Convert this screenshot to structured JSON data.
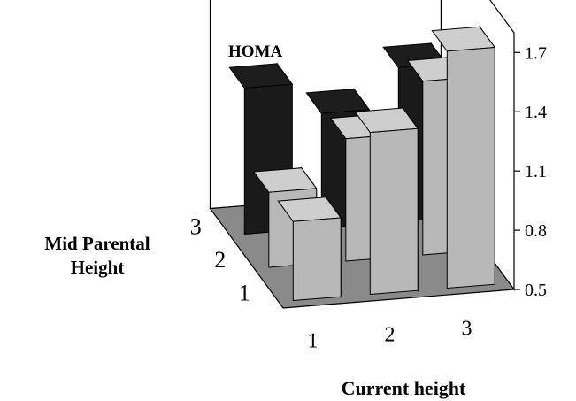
{
  "chart_data": {
    "type": "bar",
    "title": "HOMA",
    "xlabel": "Current height",
    "ylabel": "Mid Parental Height",
    "x_categories": [
      "1",
      "2",
      "3"
    ],
    "depth_categories": [
      "1",
      "2",
      "3"
    ],
    "z_ticks": [
      "0.5",
      "0.8",
      "1.1",
      "1.4",
      "1.7"
    ],
    "zlim": [
      0.5,
      1.8
    ],
    "values": [
      {
        "current": "1",
        "mid_parental": "1",
        "value": 0.9
      },
      {
        "current": "1",
        "mid_parental": "2",
        "value": 0.88
      },
      {
        "current": "1",
        "mid_parental": "3",
        "value": 1.24
      },
      {
        "current": "2",
        "mid_parental": "1",
        "value": 1.32
      },
      {
        "current": "2",
        "mid_parental": "2",
        "value": 1.12
      },
      {
        "current": "2",
        "mid_parental": "3",
        "value": 1.08
      },
      {
        "current": "3",
        "mid_parental": "1",
        "value": 1.7
      },
      {
        "current": "3",
        "mid_parental": "2",
        "value": 1.38
      },
      {
        "current": "3",
        "mid_parental": "3",
        "value": 1.28
      }
    ],
    "series_colors": {
      "1": "#b8b8b8",
      "2": "#b8b8b8",
      "3": "#1a1a1a"
    }
  }
}
